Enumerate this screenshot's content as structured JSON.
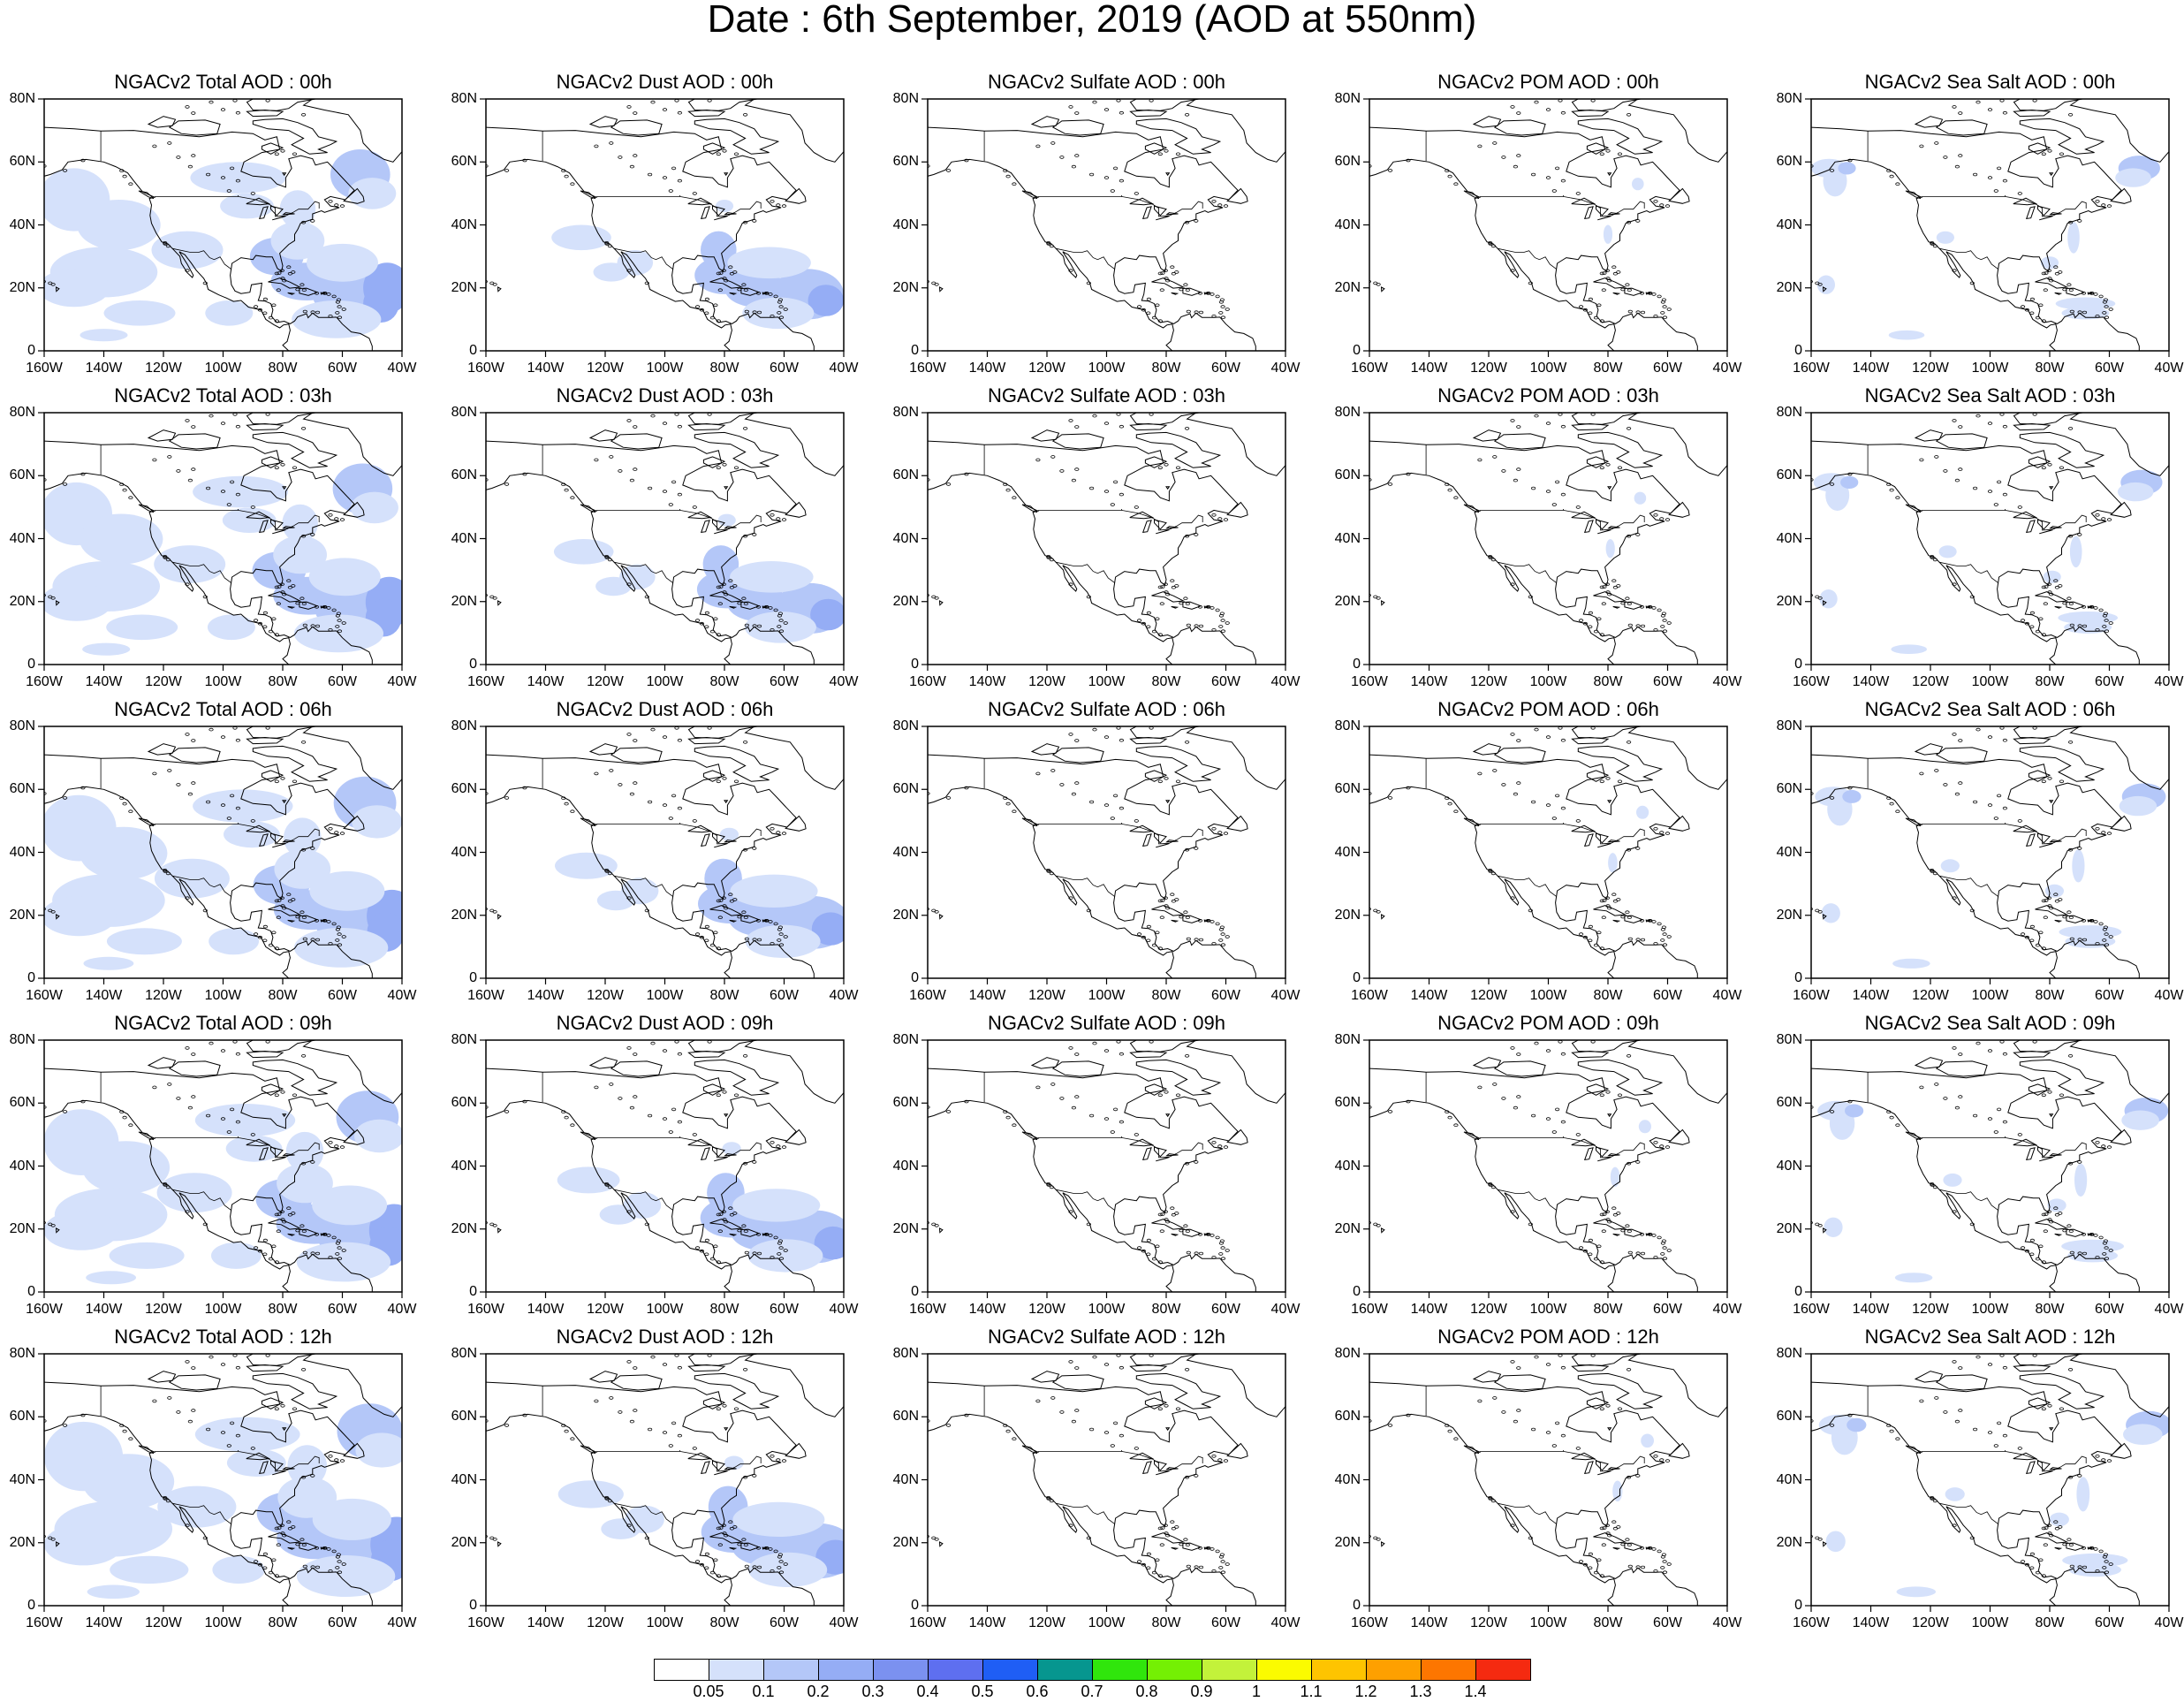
{
  "figure": {
    "title": "Date : 6th September, 2019 (AOD at 550nm)"
  },
  "axes": {
    "lat_ticks": [
      "80N",
      "60N",
      "40N",
      "20N",
      "0"
    ],
    "lon_ticks": [
      "160W",
      "140W",
      "120W",
      "100W",
      "80W",
      "60W",
      "40W"
    ]
  },
  "species": [
    "total",
    "dust",
    "sulfate",
    "pom",
    "seasalt"
  ],
  "hours": [
    "00h",
    "03h",
    "06h",
    "09h",
    "12h"
  ],
  "panels": [
    {
      "species": "total",
      "hour": "00h",
      "title": "NGACv2 Total AOD : 00h"
    },
    {
      "species": "dust",
      "hour": "00h",
      "title": "NGACv2 Dust AOD : 00h"
    },
    {
      "species": "sulfate",
      "hour": "00h",
      "title": "NGACv2 Sulfate AOD : 00h"
    },
    {
      "species": "pom",
      "hour": "00h",
      "title": "NGACv2 POM AOD : 00h"
    },
    {
      "species": "seasalt",
      "hour": "00h",
      "title": "NGACv2 Sea Salt AOD : 00h"
    },
    {
      "species": "total",
      "hour": "03h",
      "title": "NGACv2 Total AOD : 03h"
    },
    {
      "species": "dust",
      "hour": "03h",
      "title": "NGACv2 Dust AOD : 03h"
    },
    {
      "species": "sulfate",
      "hour": "03h",
      "title": "NGACv2 Sulfate AOD : 03h"
    },
    {
      "species": "pom",
      "hour": "03h",
      "title": "NGACv2 POM AOD : 03h"
    },
    {
      "species": "seasalt",
      "hour": "03h",
      "title": "NGACv2 Sea Salt AOD : 03h"
    },
    {
      "species": "total",
      "hour": "06h",
      "title": "NGACv2 Total AOD : 06h"
    },
    {
      "species": "dust",
      "hour": "06h",
      "title": "NGACv2 Dust AOD : 06h"
    },
    {
      "species": "sulfate",
      "hour": "06h",
      "title": "NGACv2 Sulfate AOD : 06h"
    },
    {
      "species": "pom",
      "hour": "06h",
      "title": "NGACv2 POM AOD : 06h"
    },
    {
      "species": "seasalt",
      "hour": "06h",
      "title": "NGACv2 Sea Salt AOD : 06h"
    },
    {
      "species": "total",
      "hour": "09h",
      "title": "NGACv2 Total AOD : 09h"
    },
    {
      "species": "dust",
      "hour": "09h",
      "title": "NGACv2 Dust AOD : 09h"
    },
    {
      "species": "sulfate",
      "hour": "09h",
      "title": "NGACv2 Sulfate AOD : 09h"
    },
    {
      "species": "pom",
      "hour": "09h",
      "title": "NGACv2 POM AOD : 09h"
    },
    {
      "species": "seasalt",
      "hour": "09h",
      "title": "NGACv2 Sea Salt  AOD : 09h"
    },
    {
      "species": "total",
      "hour": "12h",
      "title": "NGACv2 Total AOD  : 12h"
    },
    {
      "species": "dust",
      "hour": "12h",
      "title": "NGACv2 Dust AOD : 12h"
    },
    {
      "species": "sulfate",
      "hour": "12h",
      "title": "NGACv2 Sulfate AOD : 12h"
    },
    {
      "species": "pom",
      "hour": "12h",
      "title": "NGACv2 POM  AOD : 12h"
    },
    {
      "species": "seasalt",
      "hour": "12h",
      "title": "NGACv2 Sea Salt  AOD : 12h"
    }
  ],
  "colorbar": {
    "colors": [
      "#ffffff",
      "#d5e1fb",
      "#b4c7f8",
      "#95adf5",
      "#7b91f0",
      "#5e6ff0",
      "#1f5ef5",
      "#06968f",
      "#30e60c",
      "#74f004",
      "#c3f23a",
      "#fbfb00",
      "#fec400",
      "#fea000",
      "#fd7600",
      "#f52a10"
    ],
    "labels": [
      "0.05",
      "0.1",
      "0.2",
      "0.3",
      "0.4",
      "0.5",
      "0.6",
      "0.7",
      "0.8",
      "0.9",
      "1",
      "1.1",
      "1.2",
      "1.3",
      "1.4"
    ]
  }
}
